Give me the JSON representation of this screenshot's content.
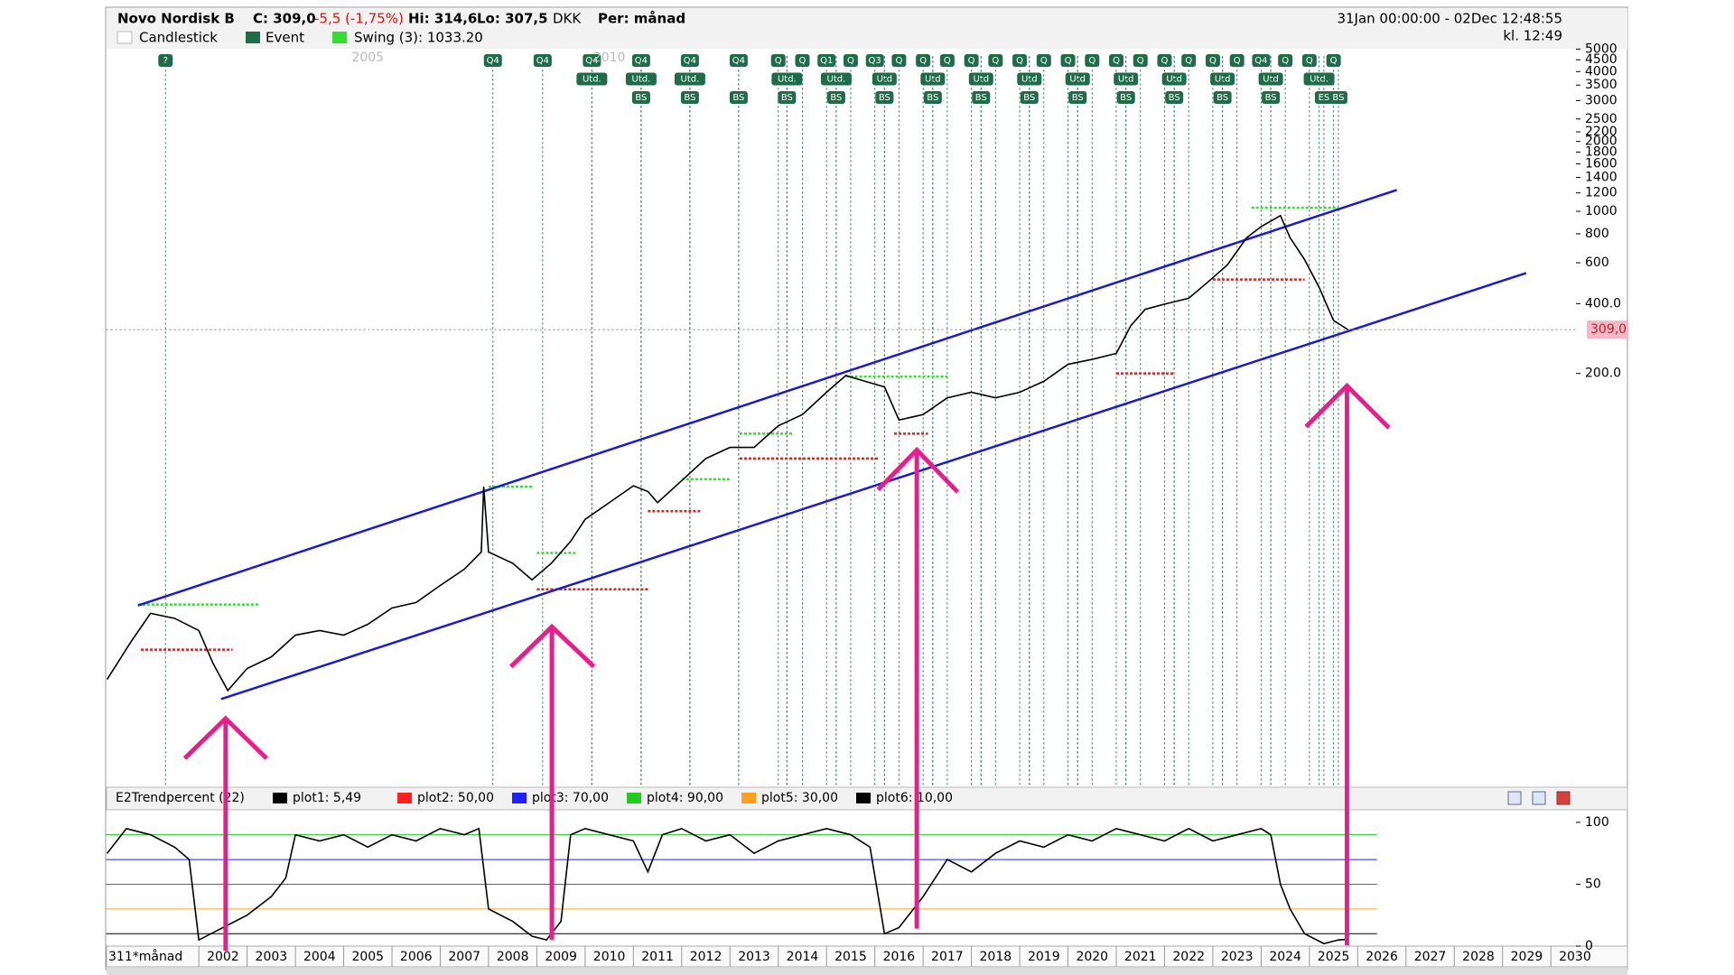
{
  "header": {
    "name": "Novo Nordisk B",
    "close": "C: 309,0",
    "change": "-5,5 (-1,75%)",
    "high": "Hi: 314,6",
    "low": "Lo: 307,5",
    "currency": "DKK",
    "period": "Per: månad",
    "range": "31Jan 00:00:00 - 02Dec 12:48:55",
    "clock": "kl. 12:49"
  },
  "chart_data": [
    {
      "type": "line",
      "log_y": true,
      "xlim": [
        2000.08,
        2030.52
      ],
      "ylim": [
        3.3,
        5000
      ],
      "top_xticks": [
        2005,
        2010
      ],
      "yticks": [
        {
          "value": 200,
          "label": "200.0"
        },
        {
          "value": 400,
          "label": "400.0"
        },
        600,
        800,
        1000,
        1200,
        1400,
        1600,
        1800,
        2000,
        2200,
        2500,
        3000,
        3500,
        4000,
        4500,
        5000
      ],
      "series": [
        {
          "name": "Candlestick",
          "color": "#000000",
          "x": [
            2000.1,
            2000.6,
            2001.0,
            2001.5,
            2002.0,
            2002.3,
            2002.6,
            2003.0,
            2003.5,
            2004.0,
            2004.5,
            2005.0,
            2005.5,
            2006.0,
            2006.5,
            2007.0,
            2007.5,
            2007.85,
            2007.9,
            2008.0,
            2008.5,
            2008.9,
            2009.3,
            2009.7,
            2010.0,
            2010.5,
            2011.0,
            2011.3,
            2011.5,
            2012.0,
            2012.5,
            2013.0,
            2013.5,
            2014.0,
            2014.5,
            2015.0,
            2015.4,
            2015.8,
            2016.2,
            2016.5,
            2017.0,
            2017.5,
            2018.0,
            2018.5,
            2019.0,
            2019.5,
            2020.0,
            2020.5,
            2021.0,
            2021.3,
            2021.6,
            2022.0,
            2022.5,
            2022.9,
            2023.3,
            2023.7,
            2024.0,
            2024.4,
            2024.6,
            2024.9,
            2025.2,
            2025.5,
            2025.8
          ],
          "values": [
            9.6,
            14,
            18.5,
            17.6,
            15.6,
            11.2,
            8.6,
            10.7,
            12,
            14.9,
            15.6,
            14.9,
            16.6,
            19.5,
            20.6,
            24.4,
            28.7,
            34,
            65,
            34,
            30.4,
            25.8,
            30.4,
            37.8,
            47,
            55.5,
            65.6,
            62,
            55.5,
            69,
            86,
            96,
            96,
            119,
            133,
            166,
            196,
            185,
            175,
            126,
            133,
            157,
            166,
            157,
            166,
            185,
            219,
            230,
            244,
            321,
            378,
            398,
            422,
            496,
            587,
            769,
            859,
            958,
            769,
            619,
            471,
            338,
            309
          ]
        }
      ],
      "last": {
        "value": 309,
        "label": "309,0",
        "color": "#f4b8c6"
      },
      "trendlines": [
        {
          "color": "#1a1ad6",
          "x": [
            2000.74,
            2026.81
          ],
          "y": [
            20,
            1236
          ]
        },
        {
          "color": "#1a1ad6",
          "x": [
            2002.46,
            2029.49
          ],
          "y": [
            7.9,
            542
          ]
        }
      ],
      "swing_name": "Swing (3): 1033.20",
      "swing_color": "#33dd33",
      "swings": [
        {
          "x": [
            2000.74,
            2003.26
          ],
          "y": 20.2,
          "color": "#33dd33"
        },
        {
          "x": [
            2008.0,
            2008.9
          ],
          "y": 65,
          "color": "#33dd33"
        },
        {
          "x": [
            2009.0,
            2009.8
          ],
          "y": 33.7,
          "color": "#33dd33"
        },
        {
          "x": [
            2012.0,
            2013.0
          ],
          "y": 70,
          "color": "#33dd33"
        },
        {
          "x": [
            2013.2,
            2014.3
          ],
          "y": 110,
          "color": "#33dd33"
        },
        {
          "x": [
            2015.4,
            2017.5
          ],
          "y": 194,
          "color": "#33dd33"
        },
        {
          "x": [
            2023.8,
            2025.6
          ],
          "y": 1036,
          "color": "#33dd33"
        },
        {
          "x": [
            2000.8,
            2002.7
          ],
          "y": 12.9,
          "color": "#e02020"
        },
        {
          "x": [
            2009.0,
            2011.3
          ],
          "y": 23.5,
          "color": "#e02020"
        },
        {
          "x": [
            2011.3,
            2012.4
          ],
          "y": 51,
          "color": "#e02020"
        },
        {
          "x": [
            2013.2,
            2016.1
          ],
          "y": 86,
          "color": "#e02020"
        },
        {
          "x": [
            2016.4,
            2017.1
          ],
          "y": 110,
          "color": "#e02020"
        },
        {
          "x": [
            2021.0,
            2022.2
          ],
          "y": 200,
          "color": "#e02020"
        },
        {
          "x": [
            2023.0,
            2024.9
          ],
          "y": 508,
          "color": "#e02020"
        }
      ],
      "events_name": "Event",
      "events_color": "#1f6b4a",
      "events": [
        {
          "row": 0,
          "x": 2001.31,
          "label": "?"
        },
        {
          "row": 0,
          "x": 2008.09,
          "label": "Q4"
        },
        {
          "row": 0,
          "x": 2009.12,
          "label": "Q4"
        },
        {
          "row": 0,
          "x": 2010.14,
          "label": "Q4"
        },
        {
          "row": 0,
          "x": 2011.16,
          "label": "Q4"
        },
        {
          "row": 0,
          "x": 2012.17,
          "label": "Q4"
        },
        {
          "row": 0,
          "x": 2013.18,
          "label": "Q4"
        },
        {
          "row": 0,
          "x": 2014.0,
          "label": "Q"
        },
        {
          "row": 0,
          "x": 2014.5,
          "label": "Q"
        },
        {
          "row": 0,
          "x": 2015.0,
          "label": "Q1"
        },
        {
          "row": 0,
          "x": 2015.5,
          "label": "Q"
        },
        {
          "row": 0,
          "x": 2016.0,
          "label": "Q3"
        },
        {
          "row": 0,
          "x": 2016.5,
          "label": "Q"
        },
        {
          "row": 0,
          "x": 2017.0,
          "label": "Q"
        },
        {
          "row": 0,
          "x": 2017.5,
          "label": "Q"
        },
        {
          "row": 0,
          "x": 2018.0,
          "label": "Q"
        },
        {
          "row": 0,
          "x": 2018.5,
          "label": "Q"
        },
        {
          "row": 0,
          "x": 2019.0,
          "label": "Q"
        },
        {
          "row": 0,
          "x": 2019.5,
          "label": "Q"
        },
        {
          "row": 0,
          "x": 2020.0,
          "label": "Q"
        },
        {
          "row": 0,
          "x": 2020.5,
          "label": "Q"
        },
        {
          "row": 0,
          "x": 2021.0,
          "label": "Q"
        },
        {
          "row": 0,
          "x": 2021.5,
          "label": "Q"
        },
        {
          "row": 0,
          "x": 2022.0,
          "label": "Q"
        },
        {
          "row": 0,
          "x": 2022.5,
          "label": "Q"
        },
        {
          "row": 0,
          "x": 2023.0,
          "label": "Q"
        },
        {
          "row": 0,
          "x": 2023.5,
          "label": "Q"
        },
        {
          "row": 0,
          "x": 2024.0,
          "label": "Q4"
        },
        {
          "row": 0,
          "x": 2024.5,
          "label": "Q"
        },
        {
          "row": 0,
          "x": 2025.0,
          "label": "Q"
        },
        {
          "row": 0,
          "x": 2025.5,
          "label": "Q"
        },
        {
          "row": 1,
          "x": 2010.14,
          "label": "Utd."
        },
        {
          "row": 1,
          "x": 2011.16,
          "label": "Utd."
        },
        {
          "row": 1,
          "x": 2012.17,
          "label": "Utd."
        },
        {
          "row": 1,
          "x": 2014.18,
          "label": "Utd."
        },
        {
          "row": 1,
          "x": 2015.2,
          "label": "Utd."
        },
        {
          "row": 1,
          "x": 2016.2,
          "label": "Utd"
        },
        {
          "row": 1,
          "x": 2017.2,
          "label": "Utd"
        },
        {
          "row": 1,
          "x": 2018.2,
          "label": "Utd"
        },
        {
          "row": 1,
          "x": 2019.2,
          "label": "Utd"
        },
        {
          "row": 1,
          "x": 2020.2,
          "label": "Utd"
        },
        {
          "row": 1,
          "x": 2021.2,
          "label": "Utd"
        },
        {
          "row": 1,
          "x": 2022.2,
          "label": "Utd"
        },
        {
          "row": 1,
          "x": 2023.2,
          "label": "Utd"
        },
        {
          "row": 1,
          "x": 2024.2,
          "label": "Utd"
        },
        {
          "row": 1,
          "x": 2025.2,
          "label": "Utd."
        },
        {
          "row": 2,
          "x": 2011.16,
          "label": "BS"
        },
        {
          "row": 2,
          "x": 2012.17,
          "label": "BS"
        },
        {
          "row": 2,
          "x": 2013.18,
          "label": "BS"
        },
        {
          "row": 2,
          "x": 2014.18,
          "label": "BS"
        },
        {
          "row": 2,
          "x": 2015.2,
          "label": "BS"
        },
        {
          "row": 2,
          "x": 2016.2,
          "label": "BS"
        },
        {
          "row": 2,
          "x": 2017.2,
          "label": "BS"
        },
        {
          "row": 2,
          "x": 2018.2,
          "label": "BS"
        },
        {
          "row": 2,
          "x": 2019.2,
          "label": "BS"
        },
        {
          "row": 2,
          "x": 2020.2,
          "label": "BS"
        },
        {
          "row": 2,
          "x": 2021.2,
          "label": "BS"
        },
        {
          "row": 2,
          "x": 2022.2,
          "label": "BS"
        },
        {
          "row": 2,
          "x": 2023.2,
          "label": "BS"
        },
        {
          "row": 2,
          "x": 2024.2,
          "label": "BS"
        },
        {
          "row": 2,
          "x": 2025.3,
          "label": "ES"
        },
        {
          "row": 2,
          "x": 2025.6,
          "label": "BS"
        }
      ]
    },
    {
      "type": "line",
      "title": "E2Trendpercent (22)",
      "xlim": [
        2000.08,
        2030.52
      ],
      "ylim": [
        0,
        108
      ],
      "yticks": [
        0,
        50,
        100
      ],
      "xlabel": "311*månad",
      "xticks": [
        2002,
        2003,
        2004,
        2005,
        2006,
        2007,
        2008,
        2009,
        2010,
        2011,
        2012,
        2013,
        2014,
        2015,
        2016,
        2017,
        2018,
        2019,
        2020,
        2021,
        2022,
        2023,
        2024,
        2025,
        2026,
        2027,
        2028,
        2029,
        2030
      ],
      "series": [
        {
          "name": "plot1: 5,49",
          "color": "#000000",
          "x": [
            2000.1,
            2000.5,
            2001.0,
            2001.5,
            2001.8,
            2002.0,
            2002.5,
            2003.0,
            2003.5,
            2003.8,
            2004.0,
            2004.5,
            2005.0,
            2005.5,
            2006.0,
            2006.5,
            2007.0,
            2007.5,
            2007.8,
            2008.0,
            2008.5,
            2008.9,
            2009.2,
            2009.5,
            2009.7,
            2010.0,
            2010.5,
            2011.0,
            2011.3,
            2011.6,
            2012.0,
            2012.5,
            2013.0,
            2013.5,
            2014.0,
            2014.5,
            2015.0,
            2015.5,
            2015.9,
            2016.2,
            2016.5,
            2017.0,
            2017.5,
            2018.0,
            2018.5,
            2019.0,
            2019.5,
            2020.0,
            2020.5,
            2021.0,
            2021.5,
            2022.0,
            2022.5,
            2023.0,
            2023.5,
            2024.0,
            2024.2,
            2024.4,
            2024.6,
            2024.9,
            2025.3,
            2025.6,
            2025.8
          ],
          "values": [
            75,
            95,
            90,
            80,
            70,
            5,
            15,
            25,
            40,
            55,
            90,
            85,
            90,
            80,
            90,
            85,
            95,
            90,
            95,
            30,
            20,
            8,
            5,
            20,
            90,
            95,
            90,
            85,
            60,
            90,
            95,
            85,
            90,
            75,
            85,
            90,
            95,
            90,
            80,
            10,
            15,
            40,
            70,
            60,
            75,
            85,
            80,
            90,
            85,
            95,
            90,
            85,
            95,
            85,
            90,
            95,
            90,
            50,
            30,
            10,
            2,
            5,
            5.49
          ]
        }
      ],
      "levels": [
        {
          "label": "plot2: 50,00",
          "value": 50,
          "color": "#ff2020"
        },
        {
          "label": "plot3: 70,00",
          "value": 70,
          "color": "#2020ff"
        },
        {
          "label": "plot4: 90,00",
          "value": 90,
          "color": "#20cc20"
        },
        {
          "label": "plot5: 30,00",
          "value": 30,
          "color": "#ffa020"
        },
        {
          "label": "plot6: 10,00",
          "value": 10,
          "color": "#000000"
        }
      ]
    }
  ]
}
